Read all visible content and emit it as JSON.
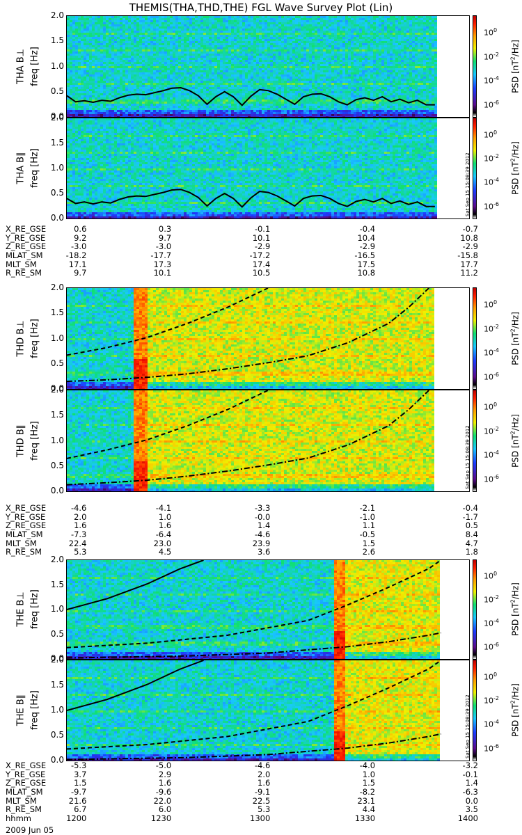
{
  "title": "THEMIS(THA,THD,THE) FGL Wave Survey Plot (Lin)",
  "colorbar": {
    "label_parts": [
      "PSD [nT",
      "2",
      "/Hz]"
    ],
    "ticks": [
      {
        "base": "10",
        "exp": "0",
        "v": 0
      },
      {
        "base": "10",
        "exp": "-2",
        "v": -2
      },
      {
        "base": "10",
        "exp": "-4",
        "v": -4
      },
      {
        "base": "10",
        "exp": "-6",
        "v": -6
      }
    ],
    "range_log": [
      -7,
      1.5
    ],
    "stamp": "Sat Sep 15 15:08:39 2012"
  },
  "chart_data": {
    "type": "heatmap",
    "x_range": [
      0,
      1
    ],
    "y_axis": {
      "label": "freq [Hz]",
      "ticks": [
        "0.0",
        "0.5",
        "1.0",
        "1.5",
        "2.0"
      ],
      "ylim": [
        0,
        2.0
      ]
    },
    "panels": [
      {
        "id": "tha-perp",
        "ylabel": "THA B⊥",
        "env": "quiet",
        "data_end": 0.915,
        "bursts": [],
        "black_line": [
          0.42,
          0.3,
          0.32,
          0.29,
          0.33,
          0.31,
          0.38,
          0.43,
          0.45,
          0.44,
          0.48,
          0.52,
          0.57,
          0.58,
          0.52,
          0.42,
          0.25,
          0.4,
          0.5,
          0.4,
          0.23,
          0.41,
          0.54,
          0.52,
          0.45,
          0.35,
          0.25,
          0.4,
          0.45,
          0.46,
          0.4,
          0.3,
          0.24,
          0.34,
          0.38,
          0.33,
          0.4,
          0.3,
          0.35,
          0.28,
          0.33,
          0.24,
          0.24
        ]
      },
      {
        "id": "tha-par",
        "ylabel": "THA B∥",
        "env": "quiet",
        "data_end": 0.915,
        "bursts": [],
        "black_line": [
          0.4,
          0.3,
          0.33,
          0.29,
          0.33,
          0.31,
          0.38,
          0.43,
          0.45,
          0.44,
          0.48,
          0.52,
          0.57,
          0.58,
          0.52,
          0.42,
          0.25,
          0.4,
          0.5,
          0.4,
          0.23,
          0.41,
          0.54,
          0.52,
          0.45,
          0.35,
          0.25,
          0.4,
          0.45,
          0.46,
          0.4,
          0.3,
          0.24,
          0.34,
          0.38,
          0.33,
          0.4,
          0.3,
          0.35,
          0.28,
          0.33,
          0.24,
          0.24
        ]
      },
      {
        "id": "thd-perp",
        "ylabel": "THD B⊥",
        "env": "thd",
        "data_end": 0.91,
        "bursts": [
          0.18
        ],
        "dashed": [
          [
            0,
            0.67
          ],
          [
            0.1,
            0.82
          ],
          [
            0.2,
            1.02
          ],
          [
            0.3,
            1.3
          ],
          [
            0.4,
            1.62
          ],
          [
            0.5,
            2.0
          ]
        ],
        "dashdot": [
          [
            0,
            0.15
          ],
          [
            0.1,
            0.18
          ],
          [
            0.2,
            0.23
          ],
          [
            0.3,
            0.3
          ],
          [
            0.4,
            0.4
          ],
          [
            0.5,
            0.52
          ],
          [
            0.6,
            0.66
          ],
          [
            0.7,
            0.92
          ],
          [
            0.8,
            1.3
          ],
          [
            0.85,
            1.62
          ],
          [
            0.9,
            2.0
          ]
        ]
      },
      {
        "id": "thd-par",
        "ylabel": "THD B∥",
        "env": "thd",
        "data_end": 0.91,
        "bursts": [
          0.18
        ],
        "dashed": [
          [
            0,
            0.65
          ],
          [
            0.1,
            0.82
          ],
          [
            0.2,
            1.02
          ],
          [
            0.3,
            1.3
          ],
          [
            0.4,
            1.62
          ],
          [
            0.5,
            2.0
          ]
        ],
        "dashdot": [
          [
            0,
            0.13
          ],
          [
            0.1,
            0.17
          ],
          [
            0.2,
            0.22
          ],
          [
            0.3,
            0.3
          ],
          [
            0.4,
            0.4
          ],
          [
            0.5,
            0.52
          ],
          [
            0.6,
            0.66
          ],
          [
            0.7,
            0.92
          ],
          [
            0.8,
            1.3
          ],
          [
            0.85,
            1.62
          ],
          [
            0.9,
            2.0
          ]
        ]
      },
      {
        "id": "the-perp",
        "ylabel": "THE B⊥",
        "env": "the",
        "data_end": 0.925,
        "bursts": [
          0.675
        ],
        "solid": [
          [
            0,
            1.0
          ],
          [
            0.1,
            1.22
          ],
          [
            0.2,
            1.52
          ],
          [
            0.28,
            1.82
          ],
          [
            0.34,
            2.0
          ]
        ],
        "dashed": [
          [
            0,
            0.23
          ],
          [
            0.2,
            0.32
          ],
          [
            0.4,
            0.48
          ],
          [
            0.6,
            0.78
          ],
          [
            0.7,
            1.1
          ],
          [
            0.8,
            1.45
          ],
          [
            0.9,
            1.83
          ],
          [
            0.93,
            2.0
          ]
        ],
        "dashdot": [
          [
            0,
            0.02
          ],
          [
            0.3,
            0.06
          ],
          [
            0.5,
            0.12
          ],
          [
            0.7,
            0.25
          ],
          [
            0.8,
            0.35
          ],
          [
            0.9,
            0.48
          ],
          [
            0.93,
            0.53
          ]
        ]
      },
      {
        "id": "the-par",
        "ylabel": "THE B∥",
        "env": "the",
        "data_end": 0.925,
        "bursts": [
          0.675
        ],
        "solid": [
          [
            0,
            1.0
          ],
          [
            0.1,
            1.22
          ],
          [
            0.2,
            1.52
          ],
          [
            0.28,
            1.82
          ],
          [
            0.34,
            2.0
          ]
        ],
        "dashed": [
          [
            0,
            0.23
          ],
          [
            0.2,
            0.32
          ],
          [
            0.4,
            0.48
          ],
          [
            0.6,
            0.78
          ],
          [
            0.7,
            1.1
          ],
          [
            0.8,
            1.45
          ],
          [
            0.9,
            1.83
          ],
          [
            0.93,
            2.0
          ]
        ],
        "dashdot": [
          [
            0,
            0.02
          ],
          [
            0.3,
            0.06
          ],
          [
            0.5,
            0.12
          ],
          [
            0.7,
            0.25
          ],
          [
            0.8,
            0.35
          ],
          [
            0.9,
            0.48
          ],
          [
            0.93,
            0.53
          ]
        ]
      }
    ]
  },
  "ephemeris": [
    {
      "rows": [
        {
          "label": "X_RE_GSE",
          "values": [
            "0.6",
            "0.3",
            "-0.1",
            "-0.4",
            "-0.7"
          ]
        },
        {
          "label": "Y_RE_GSE",
          "values": [
            "9.2",
            "9.7",
            "10.1",
            "10.4",
            "10.8"
          ]
        },
        {
          "label": "Z_RE_GSE",
          "values": [
            "-3.0",
            "-3.0",
            "-2.9",
            "-2.9",
            "-2.9"
          ]
        },
        {
          "label": "MLAT_SM",
          "values": [
            "-18.2",
            "-17.7",
            "-17.2",
            "-16.5",
            "-15.8"
          ]
        },
        {
          "label": "MLT_SM",
          "values": [
            "17.1",
            "17.3",
            "17.4",
            "17.5",
            "17.7"
          ]
        },
        {
          "label": "R_RE_SM",
          "values": [
            "9.7",
            "10.1",
            "10.5",
            "10.8",
            "11.2"
          ]
        }
      ]
    },
    {
      "rows": [
        {
          "label": "X_RE_GSE",
          "values": [
            "-4.6",
            "-4.1",
            "-3.3",
            "-2.1",
            "-0.4"
          ]
        },
        {
          "label": "Y_RE_GSE",
          "values": [
            "2.0",
            "1.0",
            "-0.0",
            "-1.0",
            "-1.7"
          ]
        },
        {
          "label": "Z_RE_GSE",
          "values": [
            "1.6",
            "1.6",
            "1.4",
            "1.1",
            "0.5"
          ]
        },
        {
          "label": "MLAT_SM",
          "values": [
            "-7.3",
            "-6.4",
            "-4.6",
            "-0.5",
            "8.4"
          ]
        },
        {
          "label": "MLT_SM",
          "values": [
            "22.4",
            "23.0",
            "23.9",
            "1.5",
            "4.7"
          ]
        },
        {
          "label": "R_RE_SM",
          "values": [
            "5.3",
            "4.5",
            "3.6",
            "2.6",
            "1.8"
          ]
        }
      ]
    },
    {
      "rows": [
        {
          "label": "X_RE_GSE",
          "values": [
            "-5.3",
            "-5.0",
            "-4.6",
            "-4.0",
            "-3.2"
          ]
        },
        {
          "label": "Y_RE_GSE",
          "values": [
            "3.7",
            "2.9",
            "2.0",
            "1.0",
            "-0.1"
          ]
        },
        {
          "label": "Z_RE_GSE",
          "values": [
            "1.5",
            "1.6",
            "1.6",
            "1.5",
            "1.4"
          ]
        },
        {
          "label": "MLAT_SM",
          "values": [
            "-9.7",
            "-9.6",
            "-9.1",
            "-8.2",
            "-6.3"
          ]
        },
        {
          "label": "MLT_SM",
          "values": [
            "21.6",
            "22.0",
            "22.5",
            "23.1",
            "0.0"
          ]
        },
        {
          "label": "R_RE_SM",
          "values": [
            "6.7",
            "6.0",
            "5.3",
            "4.4",
            "3.5"
          ]
        },
        {
          "label": "hhmm",
          "values": [
            "1200",
            "1230",
            "1300",
            "1330",
            "1400"
          ]
        }
      ]
    }
  ],
  "date": "2009 Jun 05"
}
